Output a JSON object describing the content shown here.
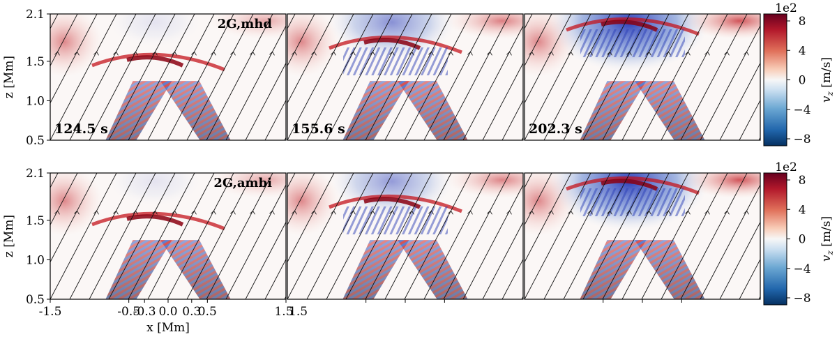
{
  "chart_data": {
    "type": "heatmap",
    "figure": {
      "ylabel": "z [Mm]",
      "xlabel": "x [Mm]",
      "xlim": [
        -1.5,
        1.5
      ],
      "ylim": [
        0.5,
        2.1
      ],
      "x_ticks": [
        "-1.5",
        "-0.5",
        "-0.3",
        "0.0",
        "0.3",
        "0.5",
        "1.5",
        "1.5"
      ],
      "y_ticks": [
        "2.1",
        "1.5",
        "1.0",
        "0.5"
      ]
    },
    "colorbar": {
      "label": "v_z [m/s]",
      "label_main": "v",
      "label_sub": "z",
      "label_unit": "[m/s]",
      "scale": "1e2",
      "ticks": [
        "8",
        "4",
        "0",
        "−4",
        "−8"
      ],
      "range": [
        -8,
        8
      ],
      "colormap": [
        "#67001f",
        "#b2182b",
        "#d6604d",
        "#f4a582",
        "#fddbc7",
        "#f7f7f7",
        "#d1e5f0",
        "#92c5de",
        "#4393c3",
        "#2166ac",
        "#053061"
      ]
    },
    "rows": [
      {
        "name": "2G,mhd",
        "panels": [
          {
            "time": "124.5 s",
            "label": "2G,mhd",
            "blue_intensity": 0.1,
            "shock_z": 1.5
          },
          {
            "time": "155.6 s",
            "label": "",
            "blue_intensity": 0.5,
            "shock_z": 1.72
          },
          {
            "time": "202.3 s",
            "label": "",
            "blue_intensity": 0.9,
            "shock_z": 1.95
          }
        ]
      },
      {
        "name": "2G,ambi",
        "panels": [
          {
            "time": "",
            "label": "2G,ambi",
            "blue_intensity": 0.1,
            "shock_z": 1.5
          },
          {
            "time": "",
            "label": "",
            "blue_intensity": 0.45,
            "shock_z": 1.72
          },
          {
            "time": "",
            "label": "",
            "blue_intensity": 0.9,
            "shock_z": 1.95
          }
        ]
      }
    ]
  }
}
